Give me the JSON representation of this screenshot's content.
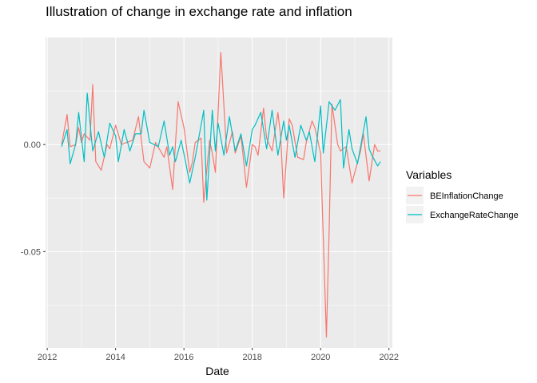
{
  "chart_data": {
    "type": "line",
    "title": "Illustration of change in exchange rate and inflation",
    "xlabel": "Date",
    "ylabel": "",
    "xlim": [
      2011.95,
      2022.1
    ],
    "ylim": [
      -0.095,
      0.05
    ],
    "x_ticks": [
      2012,
      2014,
      2016,
      2018,
      2020,
      2022
    ],
    "x_tick_labels": [
      "2012",
      "2014",
      "2016",
      "2018",
      "2020",
      "2022"
    ],
    "y_ticks": [
      0.0,
      -0.05
    ],
    "y_tick_labels": [
      "0.00",
      "-0.05"
    ],
    "grid": true,
    "legend_title": "Variables",
    "legend_position": "right",
    "series": [
      {
        "name": "BEInflationChange",
        "color": "#F8766D",
        "x": [
          2012.42,
          2012.58,
          2012.67,
          2012.83,
          2012.92,
          2013.0,
          2013.08,
          2013.25,
          2013.33,
          2013.42,
          2013.58,
          2013.75,
          2013.83,
          2014.0,
          2014.17,
          2014.33,
          2014.5,
          2014.67,
          2014.83,
          2015.0,
          2015.17,
          2015.42,
          2015.5,
          2015.67,
          2015.75,
          2015.83,
          2016.0,
          2016.17,
          2016.25,
          2016.33,
          2016.5,
          2016.58,
          2016.75,
          2016.83,
          2016.92,
          2017.08,
          2017.25,
          2017.42,
          2017.5,
          2017.67,
          2017.83,
          2018.0,
          2018.08,
          2018.17,
          2018.33,
          2018.42,
          2018.58,
          2018.75,
          2018.83,
          2018.92,
          2019.08,
          2019.17,
          2019.33,
          2019.5,
          2019.58,
          2019.75,
          2019.83,
          2020.0,
          2020.17,
          2020.25,
          2020.33,
          2020.5,
          2020.58,
          2020.75,
          2020.92,
          2021.0,
          2021.17,
          2021.25,
          2021.42,
          2021.58,
          2021.67,
          2021.75
        ],
        "values": [
          0.0,
          0.014,
          -0.001,
          0.0,
          0.008,
          0.001,
          0.005,
          0.002,
          0.028,
          -0.008,
          -0.012,
          0.0,
          -0.002,
          0.009,
          0.0,
          0.001,
          0.002,
          0.013,
          -0.008,
          -0.011,
          0.001,
          -0.006,
          -0.001,
          -0.021,
          0.0,
          0.02,
          0.008,
          -0.013,
          -0.008,
          0.001,
          0.003,
          -0.027,
          0.002,
          -0.004,
          -0.013,
          0.043,
          -0.004,
          0.006,
          -0.004,
          0.004,
          -0.02,
          0.0,
          -0.001,
          -0.005,
          0.017,
          0.003,
          -0.003,
          0.015,
          0.004,
          -0.025,
          0.012,
          0.009,
          -0.006,
          -0.007,
          0.001,
          0.011,
          0.008,
          -0.004,
          -0.09,
          -0.04,
          0.019,
          0.0,
          -0.003,
          -0.001,
          -0.018,
          -0.013,
          -0.003,
          0.005,
          -0.017,
          0.0,
          -0.003,
          -0.003
        ]
      },
      {
        "name": "ExchangeRateChange",
        "color": "#00BFC4",
        "x": [
          2012.42,
          2012.58,
          2012.67,
          2012.83,
          2012.92,
          2013.08,
          2013.17,
          2013.33,
          2013.5,
          2013.67,
          2013.83,
          2014.0,
          2014.08,
          2014.25,
          2014.42,
          2014.58,
          2014.75,
          2014.83,
          2015.0,
          2015.25,
          2015.42,
          2015.58,
          2015.67,
          2015.75,
          2015.92,
          2016.17,
          2016.33,
          2016.58,
          2016.67,
          2016.83,
          2016.92,
          2017.0,
          2017.17,
          2017.33,
          2017.5,
          2017.67,
          2017.83,
          2018.0,
          2018.08,
          2018.25,
          2018.42,
          2018.58,
          2018.75,
          2018.92,
          2019.0,
          2019.08,
          2019.25,
          2019.42,
          2019.58,
          2019.67,
          2019.83,
          2020.0,
          2020.08,
          2020.25,
          2020.42,
          2020.58,
          2020.67,
          2020.83,
          2020.92,
          2021.08,
          2021.25,
          2021.33,
          2021.42,
          2021.5,
          2021.67,
          2021.75
        ],
        "values": [
          -0.001,
          0.007,
          -0.009,
          0.0,
          0.015,
          -0.008,
          0.024,
          -0.003,
          0.006,
          -0.006,
          0.01,
          0.004,
          -0.008,
          0.007,
          -0.003,
          0.005,
          0.005,
          0.016,
          0.001,
          -0.001,
          0.011,
          -0.005,
          -0.001,
          -0.008,
          0.002,
          -0.018,
          -0.006,
          0.016,
          -0.026,
          0.016,
          -0.003,
          0.01,
          -0.005,
          0.013,
          -0.003,
          0.005,
          -0.01,
          0.007,
          0.009,
          0.015,
          -0.002,
          0.016,
          -0.005,
          0.011,
          0.002,
          0.009,
          -0.006,
          0.009,
          0.002,
          0.006,
          -0.008,
          0.018,
          -0.004,
          0.02,
          0.016,
          0.021,
          -0.011,
          0.007,
          -0.002,
          -0.009,
          0.006,
          0.013,
          -0.002,
          -0.005,
          -0.01,
          -0.008
        ]
      }
    ]
  }
}
